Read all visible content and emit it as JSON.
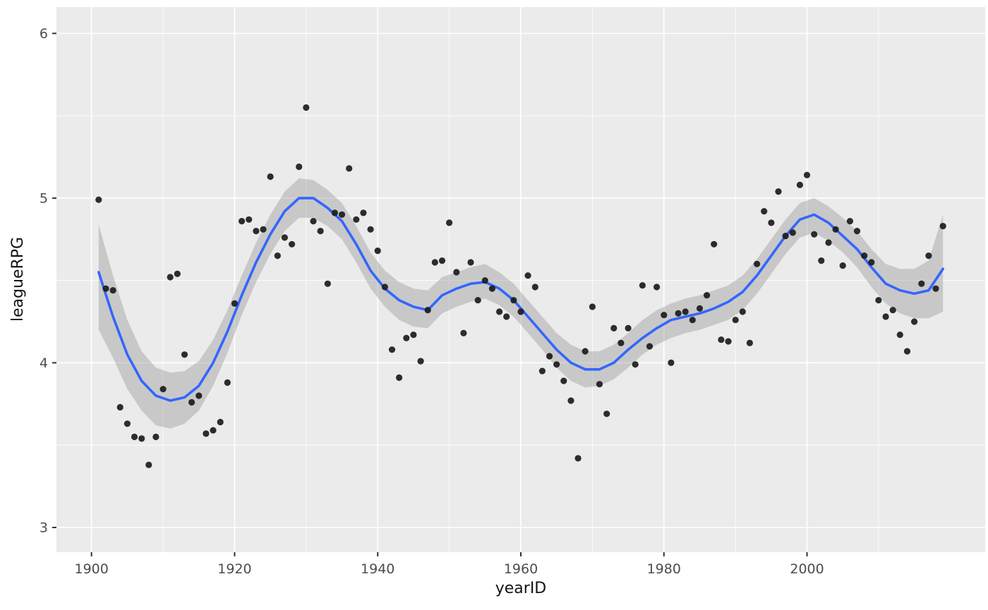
{
  "figure": {
    "background": "#FFFFFF"
  },
  "chart_data": {
    "type": "scatter",
    "title": "",
    "xlabel": "yearID",
    "ylabel": "leagueRPG",
    "xlim": [
      1895.1,
      2024.9
    ],
    "ylim": [
      2.85,
      6.16
    ],
    "x_ticks": [
      1900,
      1920,
      1940,
      1960,
      1980,
      2000
    ],
    "y_ticks": [
      3,
      4,
      5,
      6
    ],
    "x_minor_ticks": [
      1910,
      1930,
      1950,
      1970,
      1990,
      2010
    ],
    "y_minor_ticks": [
      3.5,
      4.5,
      5.5
    ],
    "grid": true,
    "legend": "none",
    "points": [
      [
        1901,
        4.99
      ],
      [
        1902,
        4.45
      ],
      [
        1903,
        4.44
      ],
      [
        1904,
        3.73
      ],
      [
        1905,
        3.63
      ],
      [
        1906,
        3.55
      ],
      [
        1907,
        3.54
      ],
      [
        1908,
        3.38
      ],
      [
        1909,
        3.55
      ],
      [
        1910,
        3.84
      ],
      [
        1911,
        4.52
      ],
      [
        1912,
        4.54
      ],
      [
        1913,
        4.05
      ],
      [
        1914,
        3.76
      ],
      [
        1915,
        3.8
      ],
      [
        1916,
        3.57
      ],
      [
        1917,
        3.59
      ],
      [
        1918,
        3.64
      ],
      [
        1919,
        3.88
      ],
      [
        1920,
        4.36
      ],
      [
        1921,
        4.86
      ],
      [
        1922,
        4.87
      ],
      [
        1923,
        4.8
      ],
      [
        1924,
        4.81
      ],
      [
        1925,
        5.13
      ],
      [
        1926,
        4.65
      ],
      [
        1927,
        4.76
      ],
      [
        1928,
        4.72
      ],
      [
        1929,
        5.19
      ],
      [
        1930,
        5.55
      ],
      [
        1931,
        4.86
      ],
      [
        1932,
        4.8
      ],
      [
        1933,
        4.48
      ],
      [
        1934,
        4.91
      ],
      [
        1935,
        4.9
      ],
      [
        1936,
        5.18
      ],
      [
        1937,
        4.87
      ],
      [
        1938,
        4.91
      ],
      [
        1939,
        4.81
      ],
      [
        1940,
        4.68
      ],
      [
        1941,
        4.46
      ],
      [
        1942,
        4.08
      ],
      [
        1943,
        3.91
      ],
      [
        1944,
        4.15
      ],
      [
        1945,
        4.17
      ],
      [
        1946,
        4.01
      ],
      [
        1947,
        4.32
      ],
      [
        1948,
        4.61
      ],
      [
        1949,
        4.62
      ],
      [
        1950,
        4.85
      ],
      [
        1951,
        4.55
      ],
      [
        1952,
        4.18
      ],
      [
        1953,
        4.61
      ],
      [
        1954,
        4.38
      ],
      [
        1955,
        4.5
      ],
      [
        1956,
        4.45
      ],
      [
        1957,
        4.31
      ],
      [
        1958,
        4.28
      ],
      [
        1959,
        4.38
      ],
      [
        1960,
        4.31
      ],
      [
        1961,
        4.53
      ],
      [
        1962,
        4.46
      ],
      [
        1963,
        3.95
      ],
      [
        1964,
        4.04
      ],
      [
        1965,
        3.99
      ],
      [
        1966,
        3.89
      ],
      [
        1967,
        3.77
      ],
      [
        1968,
        3.42
      ],
      [
        1969,
        4.07
      ],
      [
        1970,
        4.34
      ],
      [
        1971,
        3.87
      ],
      [
        1972,
        3.69
      ],
      [
        1973,
        4.21
      ],
      [
        1974,
        4.12
      ],
      [
        1975,
        4.21
      ],
      [
        1976,
        3.99
      ],
      [
        1977,
        4.47
      ],
      [
        1978,
        4.1
      ],
      [
        1979,
        4.46
      ],
      [
        1980,
        4.29
      ],
      [
        1981,
        4.0
      ],
      [
        1982,
        4.3
      ],
      [
        1983,
        4.31
      ],
      [
        1984,
        4.26
      ],
      [
        1985,
        4.33
      ],
      [
        1986,
        4.41
      ],
      [
        1987,
        4.72
      ],
      [
        1988,
        4.14
      ],
      [
        1989,
        4.13
      ],
      [
        1990,
        4.26
      ],
      [
        1991,
        4.31
      ],
      [
        1992,
        4.12
      ],
      [
        1993,
        4.6
      ],
      [
        1994,
        4.92
      ],
      [
        1995,
        4.85
      ],
      [
        1996,
        5.04
      ],
      [
        1997,
        4.77
      ],
      [
        1998,
        4.79
      ],
      [
        1999,
        5.08
      ],
      [
        2000,
        5.14
      ],
      [
        2001,
        4.78
      ],
      [
        2002,
        4.62
      ],
      [
        2003,
        4.73
      ],
      [
        2004,
        4.81
      ],
      [
        2005,
        4.59
      ],
      [
        2006,
        4.86
      ],
      [
        2007,
        4.8
      ],
      [
        2008,
        4.65
      ],
      [
        2009,
        4.61
      ],
      [
        2010,
        4.38
      ],
      [
        2011,
        4.28
      ],
      [
        2012,
        4.32
      ],
      [
        2013,
        4.17
      ],
      [
        2014,
        4.07
      ],
      [
        2015,
        4.25
      ],
      [
        2016,
        4.48
      ],
      [
        2017,
        4.65
      ],
      [
        2018,
        4.45
      ],
      [
        2019,
        4.83
      ]
    ],
    "smooth": {
      "name": "loess-fit-with-confidence-band",
      "columns": [
        "year",
        "fit",
        "lower",
        "upper"
      ],
      "samples": [
        [
          1901,
          4.55,
          4.2,
          4.84
        ],
        [
          1903,
          4.28,
          4.03,
          4.53
        ],
        [
          1905,
          4.05,
          3.84,
          4.26
        ],
        [
          1907,
          3.89,
          3.71,
          4.07
        ],
        [
          1909,
          3.8,
          3.62,
          3.97
        ],
        [
          1911,
          3.77,
          3.6,
          3.94
        ],
        [
          1913,
          3.79,
          3.63,
          3.95
        ],
        [
          1915,
          3.86,
          3.71,
          4.01
        ],
        [
          1917,
          4.0,
          3.86,
          4.14
        ],
        [
          1919,
          4.19,
          4.06,
          4.32
        ],
        [
          1921,
          4.41,
          4.29,
          4.53
        ],
        [
          1923,
          4.61,
          4.49,
          4.73
        ],
        [
          1925,
          4.78,
          4.66,
          4.9
        ],
        [
          1927,
          4.92,
          4.8,
          5.04
        ],
        [
          1929,
          5.0,
          4.88,
          5.12
        ],
        [
          1931,
          5.0,
          4.88,
          5.11
        ],
        [
          1933,
          4.94,
          4.83,
          5.05
        ],
        [
          1935,
          4.86,
          4.75,
          4.97
        ],
        [
          1937,
          4.72,
          4.61,
          4.83
        ],
        [
          1939,
          4.56,
          4.45,
          4.67
        ],
        [
          1941,
          4.45,
          4.34,
          4.56
        ],
        [
          1943,
          4.38,
          4.26,
          4.49
        ],
        [
          1945,
          4.34,
          4.22,
          4.45
        ],
        [
          1947,
          4.32,
          4.21,
          4.44
        ],
        [
          1949,
          4.41,
          4.3,
          4.52
        ],
        [
          1951,
          4.45,
          4.34,
          4.55
        ],
        [
          1953,
          4.48,
          4.37,
          4.58
        ],
        [
          1955,
          4.49,
          4.39,
          4.6
        ],
        [
          1957,
          4.45,
          4.35,
          4.55
        ],
        [
          1959,
          4.38,
          4.28,
          4.48
        ],
        [
          1961,
          4.28,
          4.18,
          4.38
        ],
        [
          1963,
          4.18,
          4.08,
          4.28
        ],
        [
          1965,
          4.08,
          3.97,
          4.18
        ],
        [
          1967,
          4.0,
          3.89,
          4.11
        ],
        [
          1969,
          3.96,
          3.85,
          4.07
        ],
        [
          1971,
          3.96,
          3.86,
          4.07
        ],
        [
          1973,
          4.0,
          3.9,
          4.11
        ],
        [
          1975,
          4.08,
          3.97,
          4.18
        ],
        [
          1977,
          4.15,
          4.05,
          4.26
        ],
        [
          1979,
          4.21,
          4.11,
          4.32
        ],
        [
          1981,
          4.26,
          4.15,
          4.36
        ],
        [
          1983,
          4.28,
          4.18,
          4.39
        ],
        [
          1985,
          4.3,
          4.2,
          4.41
        ],
        [
          1987,
          4.33,
          4.23,
          4.44
        ],
        [
          1989,
          4.37,
          4.26,
          4.47
        ],
        [
          1991,
          4.43,
          4.32,
          4.53
        ],
        [
          1993,
          4.53,
          4.42,
          4.63
        ],
        [
          1995,
          4.65,
          4.54,
          4.75
        ],
        [
          1997,
          4.77,
          4.66,
          4.87
        ],
        [
          1999,
          4.87,
          4.76,
          4.97
        ],
        [
          2001,
          4.9,
          4.79,
          5.0
        ],
        [
          2003,
          4.85,
          4.74,
          4.95
        ],
        [
          2005,
          4.77,
          4.67,
          4.88
        ],
        [
          2007,
          4.69,
          4.58,
          4.8
        ],
        [
          2009,
          4.58,
          4.46,
          4.69
        ],
        [
          2011,
          4.48,
          4.36,
          4.6
        ],
        [
          2013,
          4.44,
          4.3,
          4.57
        ],
        [
          2015,
          4.42,
          4.27,
          4.57
        ],
        [
          2017,
          4.44,
          4.27,
          4.62
        ],
        [
          2019,
          4.57,
          4.31,
          4.9
        ]
      ]
    },
    "style": {
      "panel_bg": "#EBEBEB",
      "grid_major_color": "#FFFFFF",
      "grid_minor_color": "#FFFFFF",
      "point_color": "#1B1B1B",
      "line_color": "#3366FF",
      "ribbon_color": "#999999",
      "ribbon_opacity": 0.42,
      "tick_mark_color": "#333333",
      "tick_label_color": "#4D4D4D",
      "axis_title_color": "#141414"
    }
  }
}
